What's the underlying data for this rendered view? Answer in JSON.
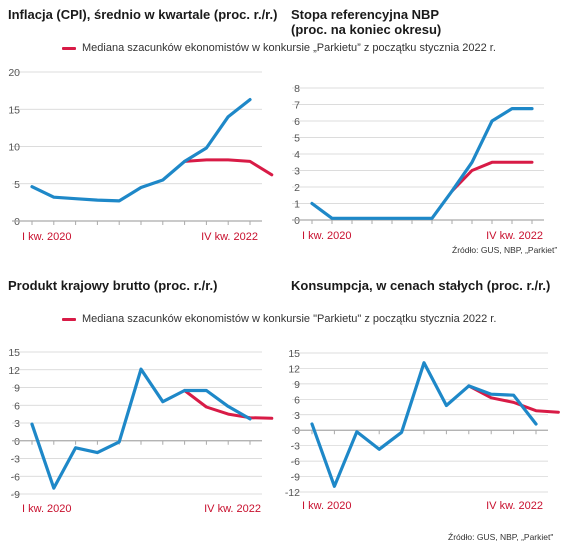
{
  "colors": {
    "actual": "#1e88c8",
    "forecast": "#d81b46",
    "axis": "#aaaaaa",
    "grid": "#d0d0d0",
    "ticks": "#555555",
    "xlabel": "#c8102e"
  },
  "legend_text": "Mediana szacunków ekonomistów w konkursie „Parkietu” z początku stycznia 2022 r.",
  "legend_text_2": "Mediana szacunków ekonomistów w konkursie \"Parkietu\" z początku stycznia 2022 r.",
  "source_text": "Źródło: GUS, NBP, „Parkiet”",
  "source_text_2": "Źródło: GUS, NBP, „Parkiet\"",
  "chart_data": [
    {
      "type": "line",
      "title": "Inflacja (CPI), średnio w kwartale (proc. r./r.)",
      "x_labels": [
        "I kw. 2020",
        "IV kw. 2022"
      ],
      "yticks": [
        0,
        5,
        10,
        15,
        20
      ],
      "ylim": [
        0,
        20
      ],
      "grid": true,
      "series": [
        {
          "role": "actual",
          "values": [
            4.6,
            3.2,
            3.0,
            2.8,
            2.7,
            4.5,
            5.5,
            8.0,
            9.8,
            14.0,
            16.3
          ]
        },
        {
          "role": "forecast",
          "name": "Mediana szacunków ekonomistów w konkursie „Parkietu” z początku stycznia 2022 r.",
          "offset": 7,
          "values": [
            8.0,
            8.2,
            8.2,
            8.0,
            6.2
          ]
        }
      ]
    },
    {
      "type": "line",
      "title": "Stopa referencyjna NBP\n(proc. na koniec okresu)",
      "x_labels": [
        "I kw. 2020",
        "IV kw. 2022"
      ],
      "yticks": [
        0,
        1,
        2,
        3,
        4,
        5,
        6,
        7,
        8
      ],
      "ylim": [
        0,
        8
      ],
      "grid": true,
      "series": [
        {
          "role": "actual",
          "values": [
            1.0,
            0.1,
            0.1,
            0.1,
            0.1,
            0.1,
            0.1,
            1.75,
            3.5,
            6.0,
            6.75,
            6.75
          ]
        },
        {
          "role": "forecast",
          "offset": 7,
          "values": [
            1.75,
            3.0,
            3.5,
            3.5,
            3.5
          ]
        }
      ]
    },
    {
      "type": "line",
      "title": "Produkt krajowy brutto (proc. r./r.)",
      "x_labels": [
        "I kw. 2020",
        "IV kw. 2022"
      ],
      "yticks": [
        -9,
        -6,
        -3,
        0,
        3,
        6,
        9,
        12,
        15
      ],
      "ylim": [
        -9,
        15
      ],
      "grid": true,
      "series": [
        {
          "role": "actual",
          "values": [
            2.8,
            -8.0,
            -1.2,
            -2.0,
            -0.2,
            12.1,
            6.6,
            8.5,
            8.5,
            5.8,
            3.7
          ]
        },
        {
          "role": "forecast",
          "name": "Mediana szacunków ekonomistów w konkursie \"Parkietu\" z początku stycznia 2022 r.",
          "offset": 7,
          "values": [
            8.5,
            5.7,
            4.5,
            3.9,
            3.8
          ]
        }
      ]
    },
    {
      "type": "line",
      "title": "Konsumpcja, w cenach stałych (proc. r./r.)",
      "x_labels": [
        "I kw. 2020",
        "IV kw. 2022"
      ],
      "yticks": [
        -12,
        -9,
        -6,
        -3,
        0,
        3,
        6,
        9,
        12,
        15
      ],
      "ylim": [
        -12,
        15
      ],
      "grid": true,
      "series": [
        {
          "role": "actual",
          "values": [
            1.2,
            -10.9,
            -0.3,
            -3.7,
            -0.4,
            13.1,
            4.8,
            8.6,
            7.0,
            6.8,
            1.2
          ]
        },
        {
          "role": "forecast",
          "offset": 7,
          "values": [
            8.6,
            6.3,
            5.4,
            3.8,
            3.5
          ]
        }
      ]
    }
  ]
}
